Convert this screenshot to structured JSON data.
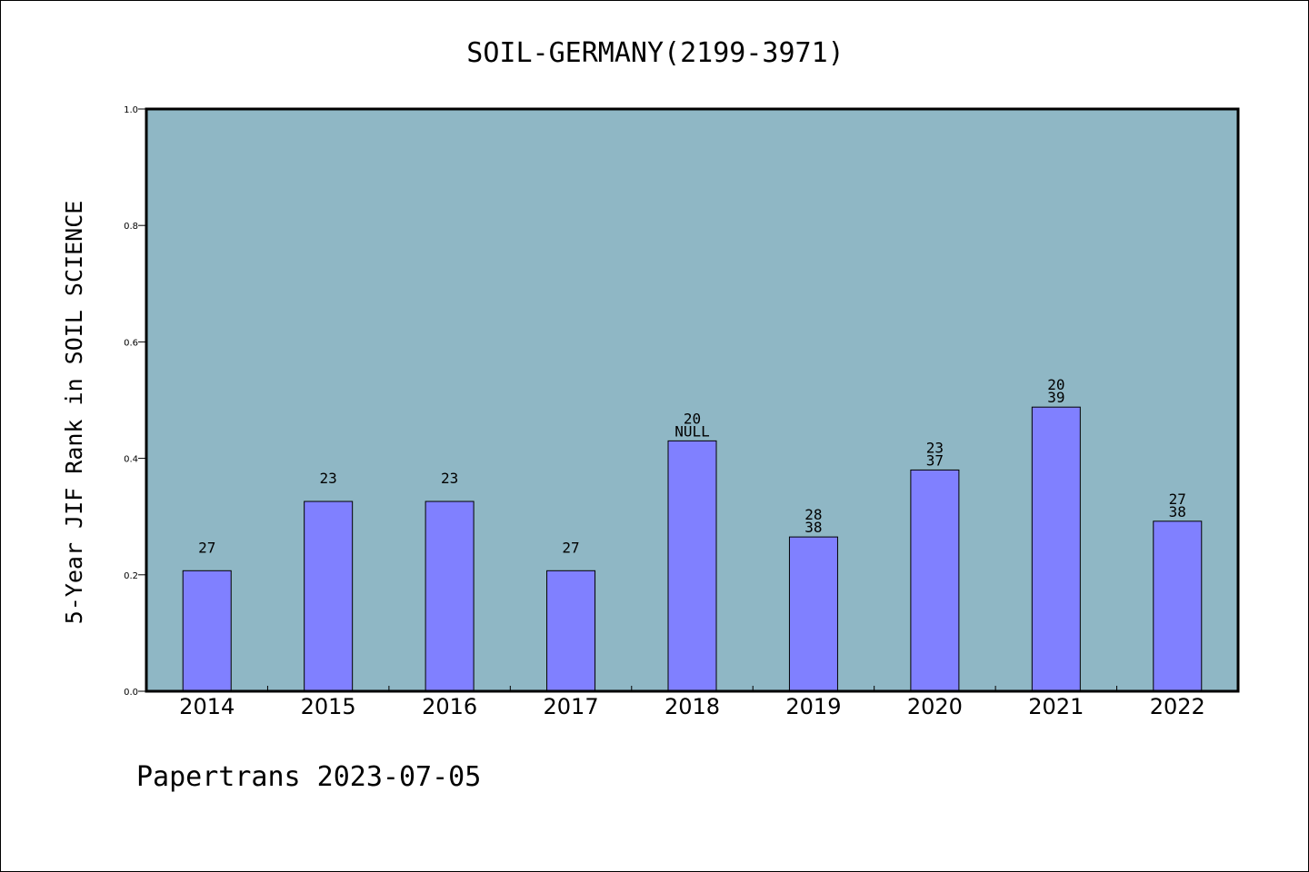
{
  "chart_data": {
    "type": "bar",
    "title": "SOIL-GERMANY(2199-3971)",
    "xlabel": "",
    "ylabel": "5-Year JIF Rank in SOIL SCIENCE",
    "ylim": [
      0,
      1.0
    ],
    "yticks": [
      "0.0",
      "0.2",
      "0.4",
      "0.6",
      "0.8",
      "1.0"
    ],
    "grid": false,
    "categories": [
      "2014",
      "2015",
      "2016",
      "2017",
      "2018",
      "2019",
      "2020",
      "2021",
      "2022"
    ],
    "values": [
      0.207,
      0.326,
      0.326,
      0.207,
      0.43,
      0.265,
      0.38,
      0.488,
      0.292
    ],
    "bar_labels": [
      [
        "27"
      ],
      [
        "23"
      ],
      [
        "23"
      ],
      [
        "27"
      ],
      [
        "20",
        "NULL"
      ],
      [
        "28",
        "38"
      ],
      [
        "23",
        "37"
      ],
      [
        "20",
        "39"
      ],
      [
        "27",
        "38"
      ]
    ],
    "colors": {
      "plot_background": "#8fb7c5",
      "bar_fill": "#8080ff",
      "bar_stroke": "#000000"
    }
  },
  "footer": {
    "text": "Papertrans 2023-07-05"
  }
}
